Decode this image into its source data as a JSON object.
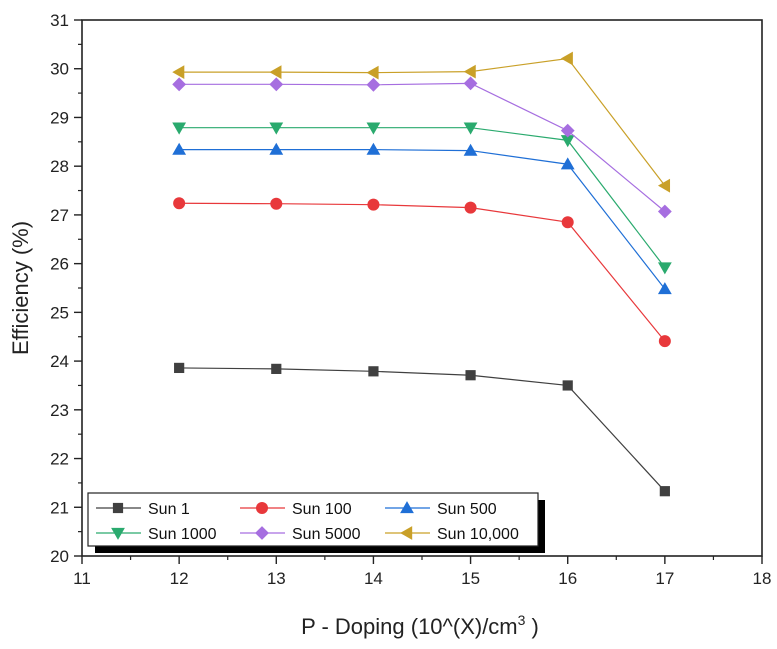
{
  "chart_data": {
    "type": "line",
    "title": "",
    "xlabel": "P - Doping (10^(X)/cm",
    "xlabel_sup": "3",
    "xlabel_tail": " )",
    "ylabel": "Efficiency (%)",
    "xlim": [
      11,
      18
    ],
    "ylim": [
      20,
      31
    ],
    "x_ticks": [
      "11",
      "12",
      "13",
      "14",
      "15",
      "16",
      "17",
      "18"
    ],
    "y_ticks": [
      "20",
      "21",
      "22",
      "23",
      "24",
      "25",
      "26",
      "27",
      "28",
      "29",
      "30",
      "31"
    ],
    "x": [
      12,
      13,
      14,
      15,
      16,
      17
    ],
    "grid": false,
    "legend_position": "bottom-left",
    "series": [
      {
        "name": "Sun 1",
        "marker": "square",
        "color": "#404040",
        "values": [
          23.86,
          23.84,
          23.79,
          23.71,
          23.5,
          21.33
        ]
      },
      {
        "name": "Sun 100",
        "marker": "circle",
        "color": "#e8383b",
        "values": [
          27.24,
          27.23,
          27.21,
          27.15,
          26.85,
          24.41
        ]
      },
      {
        "name": "Sun 500",
        "marker": "triangle-up",
        "color": "#1f6fd6",
        "values": [
          28.34,
          28.34,
          28.34,
          28.32,
          28.04,
          25.48
        ]
      },
      {
        "name": "Sun 1000",
        "marker": "triangle-down",
        "color": "#2aaa6e",
        "values": [
          28.79,
          28.79,
          28.79,
          28.79,
          28.53,
          25.92
        ]
      },
      {
        "name": "Sun 5000",
        "marker": "diamond",
        "color": "#a66ee0",
        "values": [
          29.68,
          29.68,
          29.67,
          29.7,
          28.73,
          27.07
        ]
      },
      {
        "name": "Sun 10,000",
        "marker": "triangle-left",
        "color": "#c9a028",
        "values": [
          29.93,
          29.93,
          29.92,
          29.94,
          30.21,
          27.6
        ]
      }
    ]
  }
}
